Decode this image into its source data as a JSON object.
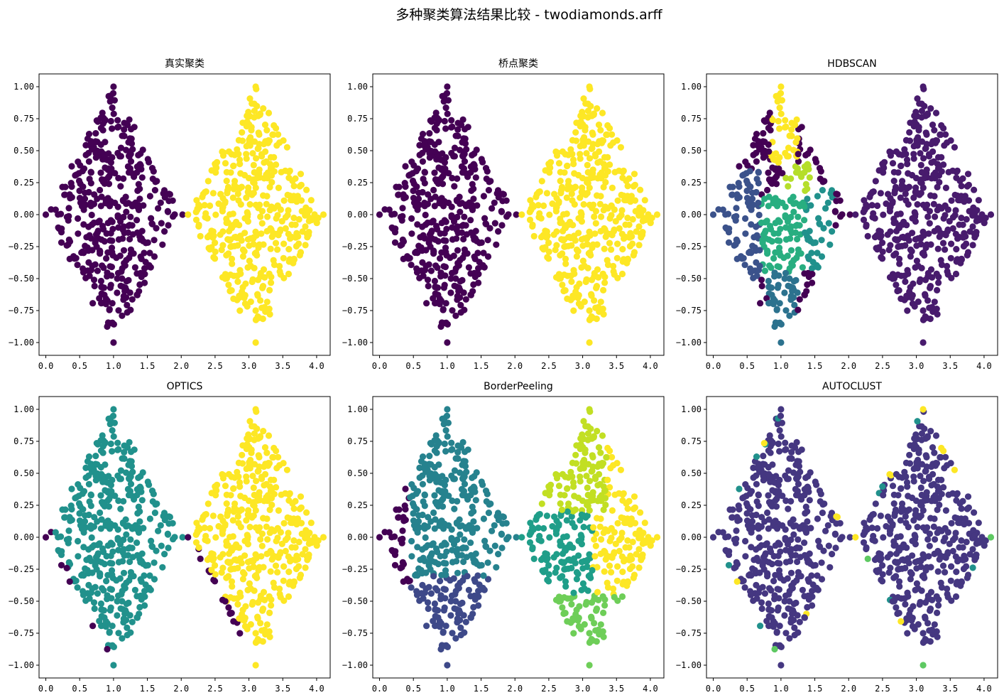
{
  "figure": {
    "suptitle": "多种聚类算法结果比较 - twodiamonds.arff"
  },
  "chart_data": [
    {
      "type": "scatter",
      "title": "真实聚类",
      "xlabel": "",
      "ylabel": "",
      "xlim": [
        -0.1,
        4.2
      ],
      "ylim": [
        -1.1,
        1.1
      ],
      "xticks": [
        "0.0",
        "0.5",
        "1.0",
        "1.5",
        "2.0",
        "2.5",
        "3.0",
        "3.5",
        "4.0"
      ],
      "yticks": [
        "-1.00",
        "-0.75",
        "-0.50",
        "-0.25",
        "0.00",
        "0.25",
        "0.50",
        "0.75",
        "1.00"
      ],
      "scheme": "truth",
      "approx_points": 800,
      "clusters": [
        {
          "label": 0,
          "color": "#440154",
          "region": "left diamond"
        },
        {
          "label": 1,
          "color": "#fde725",
          "region": "right diamond"
        }
      ]
    },
    {
      "type": "scatter",
      "title": "桥点聚类",
      "xlabel": "",
      "ylabel": "",
      "xlim": [
        -0.1,
        4.2
      ],
      "ylim": [
        -1.1,
        1.1
      ],
      "xticks": [
        "0.0",
        "0.5",
        "1.0",
        "1.5",
        "2.0",
        "2.5",
        "3.0",
        "3.5",
        "4.0"
      ],
      "yticks": [
        "-1.00",
        "-0.75",
        "-0.50",
        "-0.25",
        "0.00",
        "0.25",
        "0.50",
        "0.75",
        "1.00"
      ],
      "scheme": "truth",
      "approx_points": 800,
      "clusters": [
        {
          "label": 0,
          "color": "#440154",
          "region": "left diamond"
        },
        {
          "label": 1,
          "color": "#fde725",
          "region": "right diamond"
        }
      ]
    },
    {
      "type": "scatter",
      "title": "HDBSCAN",
      "xlabel": "",
      "ylabel": "",
      "xlim": [
        -0.1,
        4.2
      ],
      "ylim": [
        -1.1,
        1.1
      ],
      "xticks": [
        "0.0",
        "0.5",
        "1.0",
        "1.5",
        "2.0",
        "2.5",
        "3.0",
        "3.5",
        "4.0"
      ],
      "yticks": [
        "-1.00",
        "-0.75",
        "-0.50",
        "-0.25",
        "0.00",
        "0.25",
        "0.50",
        "0.75",
        "1.00"
      ],
      "scheme": "hdbscan",
      "approx_points": 800,
      "clusters": [
        {
          "label": -1,
          "color": "#440154",
          "region": "noise (left diamond)"
        },
        {
          "label": 0,
          "color": "#481b6d",
          "region": "right diamond"
        },
        {
          "label": 1,
          "color": "#3b528b",
          "region": "left-lower blobs"
        },
        {
          "label": 2,
          "color": "#2c728e",
          "region": "bottom tip"
        },
        {
          "label": 3,
          "color": "#21918c",
          "region": "center-right"
        },
        {
          "label": 4,
          "color": "#28ae80",
          "region": "center"
        },
        {
          "label": 5,
          "color": "#b5de2b",
          "region": "upper-middle"
        },
        {
          "label": 6,
          "color": "#fde725",
          "region": "top"
        }
      ]
    },
    {
      "type": "scatter",
      "title": "OPTICS",
      "xlabel": "",
      "ylabel": "",
      "xlim": [
        -0.1,
        4.2
      ],
      "ylim": [
        -1.1,
        1.1
      ],
      "xticks": [
        "0.0",
        "0.5",
        "1.0",
        "1.5",
        "2.0",
        "2.5",
        "3.0",
        "3.5",
        "4.0"
      ],
      "yticks": [
        "-1.00",
        "-0.75",
        "-0.50",
        "-0.25",
        "0.00",
        "0.25",
        "0.50",
        "0.75",
        "1.00"
      ],
      "scheme": "optics",
      "approx_points": 800,
      "clusters": [
        {
          "label": -1,
          "color": "#440154",
          "region": "noise on edges"
        },
        {
          "label": 0,
          "color": "#21918c",
          "region": "left diamond"
        },
        {
          "label": 1,
          "color": "#fde725",
          "region": "right diamond"
        }
      ]
    },
    {
      "type": "scatter",
      "title": "BorderPeeling",
      "xlabel": "",
      "ylabel": "",
      "xlim": [
        -0.1,
        4.2
      ],
      "ylim": [
        -1.1,
        1.1
      ],
      "xticks": [
        "0.0",
        "0.5",
        "1.0",
        "1.5",
        "2.0",
        "2.5",
        "3.0",
        "3.5",
        "4.0"
      ],
      "yticks": [
        "-1.00",
        "-0.75",
        "-0.50",
        "-0.25",
        "0.00",
        "0.25",
        "0.50",
        "0.75",
        "1.00"
      ],
      "scheme": "border",
      "approx_points": 800,
      "clusters": [
        {
          "label": -1,
          "color": "#440154",
          "region": "left tip"
        },
        {
          "label": 0,
          "color": "#3e4989",
          "region": "left lower"
        },
        {
          "label": 1,
          "color": "#26828e",
          "region": "left upper"
        },
        {
          "label": 2,
          "color": "#1f9e89",
          "region": "right lower-left"
        },
        {
          "label": 3,
          "color": "#6ece58",
          "region": "right bottom"
        },
        {
          "label": 4,
          "color": "#c2df23",
          "region": "right top"
        },
        {
          "label": 5,
          "color": "#fde725",
          "region": "right right"
        }
      ]
    },
    {
      "type": "scatter",
      "title": "AUTOCLUST",
      "xlabel": "",
      "ylabel": "",
      "xlim": [
        -0.1,
        4.2
      ],
      "ylim": [
        -1.1,
        1.1
      ],
      "xticks": [
        "0.0",
        "0.5",
        "1.0",
        "1.5",
        "2.0",
        "2.5",
        "3.0",
        "3.5",
        "4.0"
      ],
      "yticks": [
        "-1.00",
        "-0.75",
        "-0.50",
        "-0.25",
        "0.00",
        "0.25",
        "0.50",
        "0.75",
        "1.00"
      ],
      "scheme": "autoclust",
      "approx_points": 800,
      "clusters": [
        {
          "label": 0,
          "color": "#453781",
          "region": "both diamonds"
        },
        {
          "label": -1,
          "color": "#21918c",
          "region": "scattered edge points"
        },
        {
          "label": 2,
          "color": "#5ec962",
          "region": "scattered edge points"
        },
        {
          "label": 3,
          "color": "#fde725",
          "region": "scattered edge points"
        }
      ]
    }
  ]
}
